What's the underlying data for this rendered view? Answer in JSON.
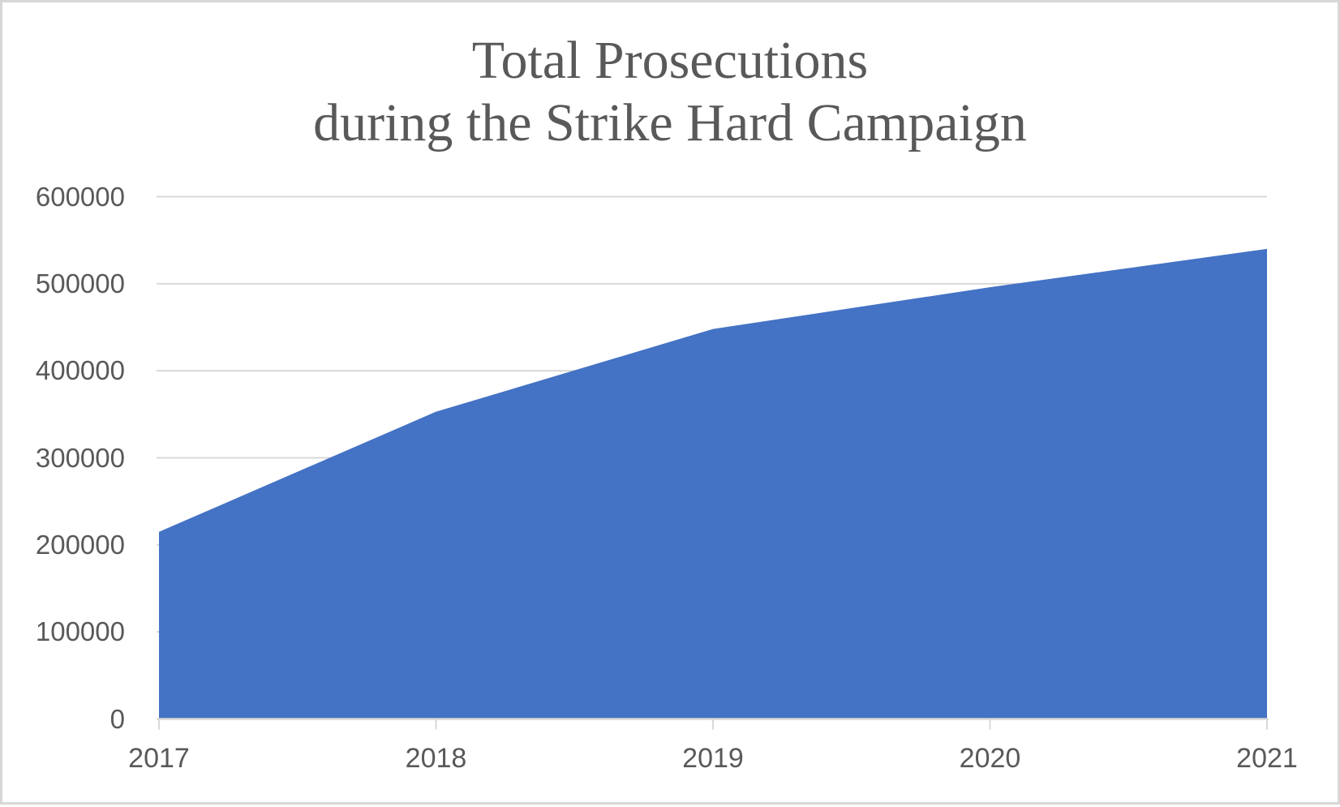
{
  "chart_data": {
    "type": "area",
    "title": "Total Prosecutions during the Strike Hard Campaign",
    "title_line1": "Total Prosecutions",
    "title_line2": "during the Strike Hard Campaign",
    "categories": [
      "2017",
      "2018",
      "2019",
      "2020",
      "2021"
    ],
    "values": [
      215000,
      353000,
      448000,
      496000,
      540000
    ],
    "x_tick_labels": [
      "2017",
      "2018",
      "2019",
      "2020",
      "2021"
    ],
    "y_ticks_values": [
      600000,
      500000,
      400000,
      300000,
      200000,
      100000,
      0
    ],
    "y_tick_labels": [
      "600000",
      "500000",
      "400000",
      "300000",
      "200000",
      "100000",
      "0"
    ],
    "xlabel": "",
    "ylabel": "",
    "ylim": [
      0,
      600000
    ],
    "grid": "horizontal-only",
    "legend": "none",
    "colors": {
      "series_fill": "#4472C4",
      "gridline": "#D9D9D9",
      "axis_line": "#D9D9D9",
      "tick_mark": "#D9D9D9",
      "title_text": "#595959",
      "axis_text": "#595959",
      "frame_border": "#D7D7D7"
    }
  }
}
